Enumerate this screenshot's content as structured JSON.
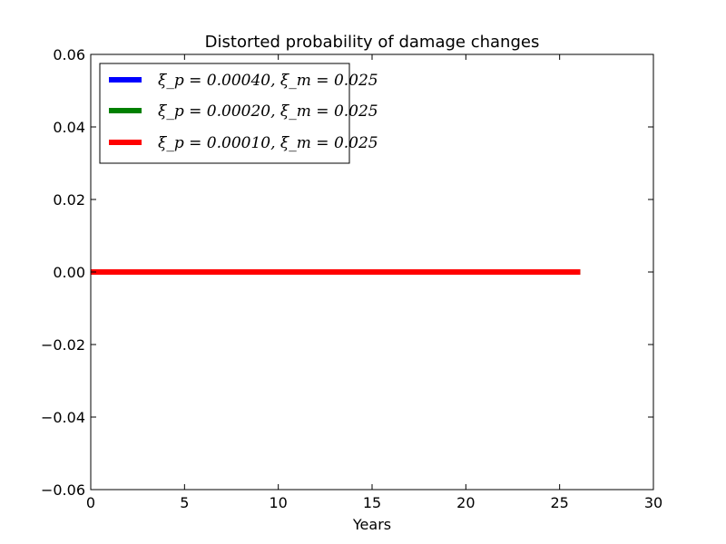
{
  "chart_data": {
    "type": "line",
    "title": "Distorted probability of damage changes",
    "xlabel": "Years",
    "ylabel": "",
    "xlim": [
      0,
      30
    ],
    "ylim": [
      -0.06,
      0.06
    ],
    "xticks": [
      0,
      5,
      10,
      15,
      20,
      25,
      30
    ],
    "xtick_labels": [
      "0",
      "5",
      "10",
      "15",
      "20",
      "25",
      "30"
    ],
    "yticks": [
      -0.06,
      -0.04,
      -0.02,
      0.0,
      0.02,
      0.04,
      0.06
    ],
    "ytick_labels": [
      "−0.06",
      "−0.04",
      "−0.02",
      "0.00",
      "0.02",
      "0.04",
      "0.06"
    ],
    "grid": false,
    "legend_position": "top-left",
    "series": [
      {
        "name": "ξ_p = 0.00040, ξ_m = 0.025",
        "color": "#0000ff",
        "x": [
          0,
          26.1
        ],
        "y": [
          0,
          0
        ]
      },
      {
        "name": "ξ_p = 0.00020, ξ_m = 0.025",
        "color": "#008000",
        "x": [
          0,
          26.1
        ],
        "y": [
          0,
          0
        ]
      },
      {
        "name": "ξ_p = 0.00010, ξ_m = 0.025",
        "color": "#ff0000",
        "x": [
          0,
          26.1
        ],
        "y": [
          0,
          0
        ]
      }
    ]
  }
}
